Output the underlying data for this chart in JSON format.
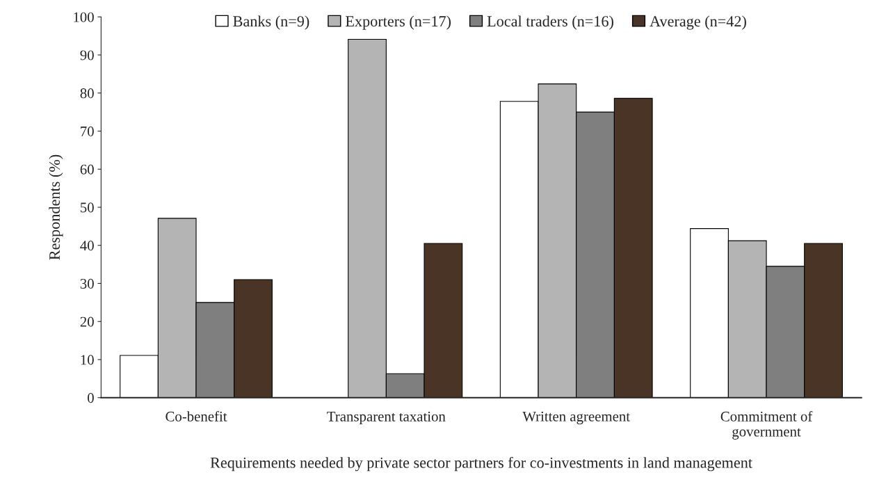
{
  "chart_data": {
    "type": "bar",
    "categories": [
      "Co-benefit",
      "Transparent taxation",
      "Written agreement",
      "Commitment of\ngovernment"
    ],
    "series": [
      {
        "name": "Banks (n=9)",
        "color": "#ffffff",
        "values": [
          11.1,
          0,
          77.8,
          44.4
        ]
      },
      {
        "name": "Exporters (n=17)",
        "color": "#b4b4b4",
        "values": [
          47.1,
          94.1,
          82.4,
          41.2
        ]
      },
      {
        "name": "Local traders (n=16)",
        "color": "#7f7f7f",
        "values": [
          25,
          6.3,
          75,
          34.5
        ]
      },
      {
        "name": "Average (n=42)",
        "color": "#4a3426",
        "values": [
          31,
          40.5,
          78.6,
          40.5
        ]
      }
    ],
    "xlabel": "Requirements needed by private sector partners for co-investments in land management",
    "ylabel": "Respondents (%)",
    "ylim": [
      0,
      100
    ],
    "yticks": [
      0,
      10,
      20,
      30,
      40,
      50,
      60,
      70,
      80,
      90,
      100
    ],
    "grid": false,
    "legend": "top"
  }
}
